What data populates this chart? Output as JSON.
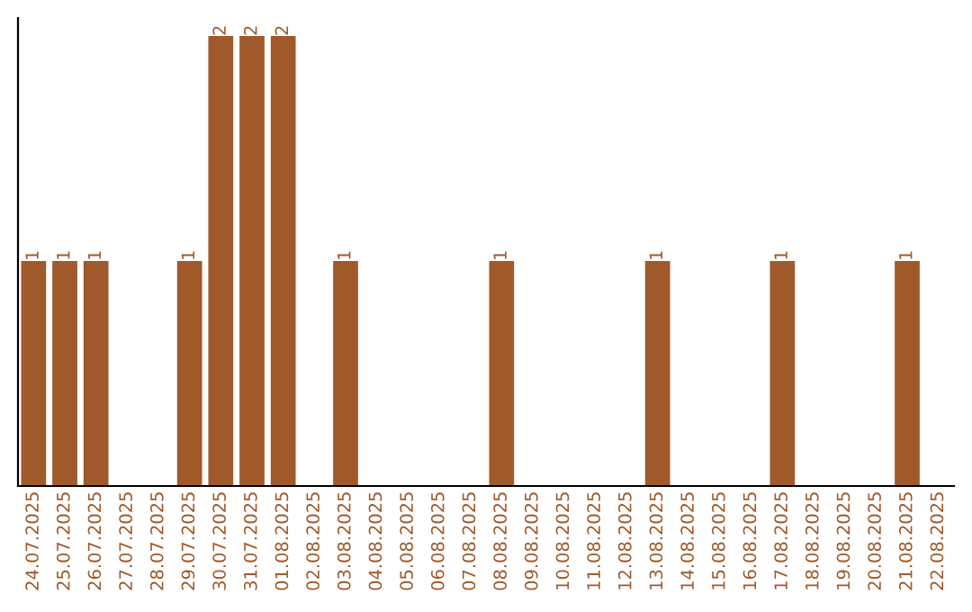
{
  "chart_data": {
    "type": "bar",
    "categories": [
      "24.07.2025",
      "25.07.2025",
      "26.07.2025",
      "27.07.2025",
      "28.07.2025",
      "29.07.2025",
      "30.07.2025",
      "31.07.2025",
      "01.08.2025",
      "02.08.2025",
      "03.08.2025",
      "04.08.2025",
      "05.08.2025",
      "06.08.2025",
      "07.08.2025",
      "08.08.2025",
      "09.08.2025",
      "10.08.2025",
      "11.08.2025",
      "12.08.2025",
      "13.08.2025",
      "14.08.2025",
      "15.08.2025",
      "16.08.2025",
      "17.08.2025",
      "18.08.2025",
      "19.08.2025",
      "20.08.2025",
      "21.08.2025",
      "22.08.2025"
    ],
    "values": [
      1,
      1,
      1,
      0,
      0,
      1,
      2,
      2,
      2,
      0,
      1,
      0,
      0,
      0,
      0,
      1,
      0,
      0,
      0,
      0,
      1,
      0,
      0,
      0,
      1,
      0,
      0,
      0,
      1,
      0
    ],
    "value_labels": [
      "1",
      "1",
      "1",
      null,
      null,
      "1",
      "2",
      "2",
      "2",
      null,
      "1",
      null,
      null,
      null,
      null,
      "1",
      null,
      null,
      null,
      null,
      "1",
      null,
      null,
      null,
      "1",
      null,
      null,
      null,
      "1",
      null
    ],
    "color": "#a0592a",
    "ylim": [
      0,
      2.08
    ],
    "tick_labels": "x",
    "grid": false,
    "legend": false
  }
}
